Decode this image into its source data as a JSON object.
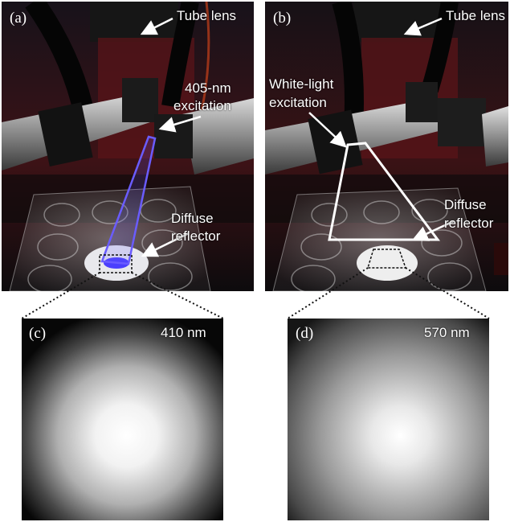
{
  "panels": {
    "a": {
      "label": "(a)",
      "tube_lens": "Tube lens",
      "excitation_line1": "405-nm",
      "excitation_line2": "excitation",
      "reflector_line1": "Diffuse",
      "reflector_line2": "reflector"
    },
    "b": {
      "label": "(b)",
      "tube_lens": "Tube lens",
      "excitation_line1": "White-light",
      "excitation_line2": "excitation",
      "reflector_line1": "Diffuse",
      "reflector_line2": "reflector"
    },
    "c": {
      "label": "(c)",
      "wavelength": "410 nm"
    },
    "d": {
      "label": "(d)",
      "wavelength": "570 nm"
    }
  },
  "colors": {
    "excitation_beam_405": "#6a5cff",
    "white_beam": "#ffffff",
    "background_dark": "#0b0a0c",
    "housing_red": "#5a1418"
  }
}
